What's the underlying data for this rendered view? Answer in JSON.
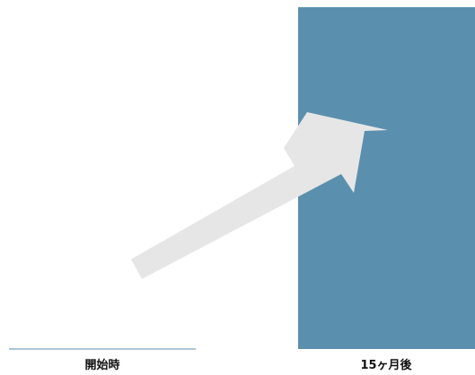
{
  "chart_data": {
    "type": "bar",
    "categories": [
      "開始時",
      "15ヶ月後"
    ],
    "values": [
      0,
      100
    ],
    "ylim": [
      0,
      100
    ],
    "bar_color": "#5b8fae",
    "baseline_color": "#5b8fae",
    "arrow_color": "#e6e6e6",
    "arrow_direction": "up-right",
    "grid": false,
    "legend": "none"
  }
}
